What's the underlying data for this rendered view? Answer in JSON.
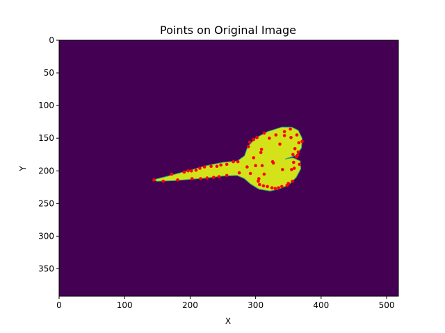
{
  "chart_data": {
    "type": "scatter",
    "title": "Points on Original Image",
    "xlabel": "X",
    "ylabel": "Y",
    "xlim": [
      0,
      518
    ],
    "ylim": [
      392,
      0
    ],
    "y_inverted": true,
    "grid": false,
    "x_ticks": [
      "0",
      "100",
      "200",
      "300",
      "400",
      "500"
    ],
    "y_ticks": [
      "0",
      "50",
      "100",
      "150",
      "200",
      "250",
      "300",
      "350"
    ],
    "colors": {
      "background": "#440154",
      "shape_fill": "#d4e21a",
      "shape_edge": "#22a884",
      "points": "#ff0000"
    },
    "image_shape": {
      "description_kind": "fish-like yellow blob on viridis background",
      "outline": [
        [
          143,
          214
        ],
        [
          170,
          207
        ],
        [
          200,
          199
        ],
        [
          225,
          192
        ],
        [
          250,
          187
        ],
        [
          272,
          185
        ],
        [
          283,
          177
        ],
        [
          288,
          163
        ],
        [
          300,
          150
        ],
        [
          318,
          140
        ],
        [
          340,
          133
        ],
        [
          355,
          133
        ],
        [
          365,
          138
        ],
        [
          371,
          150
        ],
        [
          370,
          165
        ],
        [
          362,
          176
        ],
        [
          345,
          182
        ],
        [
          357,
          180
        ],
        [
          368,
          185
        ],
        [
          369,
          197
        ],
        [
          362,
          210
        ],
        [
          350,
          222
        ],
        [
          335,
          228
        ],
        [
          322,
          231
        ],
        [
          305,
          228
        ],
        [
          292,
          220
        ],
        [
          283,
          212
        ],
        [
          272,
          207
        ],
        [
          250,
          208
        ],
        [
          225,
          211
        ],
        [
          200,
          213
        ],
        [
          175,
          215
        ],
        [
          150,
          216
        ]
      ]
    },
    "series": [
      {
        "values": [
          [
            145,
            214
          ],
          [
            159,
            216
          ],
          [
            172,
            205
          ],
          [
            181,
            214
          ],
          [
            191,
            202
          ],
          [
            197,
            200
          ],
          [
            202,
            200
          ],
          [
            203,
            212
          ],
          [
            209,
            199
          ],
          [
            215,
            196
          ],
          [
            216,
            212
          ],
          [
            222,
            194
          ],
          [
            226,
            211
          ],
          [
            232,
            193
          ],
          [
            236,
            210
          ],
          [
            241,
            193
          ],
          [
            244,
            209
          ],
          [
            247,
            191
          ],
          [
            256,
            190
          ],
          [
            256,
            207
          ],
          [
            266,
            186
          ],
          [
            273,
            186
          ],
          [
            275,
            203
          ],
          [
            287,
            194
          ],
          [
            289,
            163
          ],
          [
            291,
            156
          ],
          [
            292,
            204
          ],
          [
            297,
            152
          ],
          [
            297,
            180
          ],
          [
            300,
            192
          ],
          [
            302,
            149
          ],
          [
            304,
            216
          ],
          [
            305,
            212
          ],
          [
            306,
            221
          ],
          [
            308,
            172
          ],
          [
            309,
            167
          ],
          [
            310,
            192
          ],
          [
            312,
            223
          ],
          [
            313,
            142
          ],
          [
            313,
            205
          ],
          [
            318,
            224
          ],
          [
            325,
            226
          ],
          [
            326,
            186
          ],
          [
            330,
            227
          ],
          [
            331,
            145
          ],
          [
            335,
            226
          ],
          [
            337,
            159
          ],
          [
            340,
            224
          ],
          [
            341,
            198
          ],
          [
            344,
            146
          ],
          [
            344,
            140
          ],
          [
            348,
            222
          ],
          [
            350,
            219
          ],
          [
            353,
            136
          ],
          [
            354,
            149
          ],
          [
            355,
            198
          ],
          [
            356,
            216
          ],
          [
            357,
            175
          ],
          [
            358,
            187
          ],
          [
            359,
            196
          ],
          [
            360,
            166
          ],
          [
            362,
            179
          ],
          [
            363,
            145
          ],
          [
            364,
            176
          ],
          [
            365,
            171
          ],
          [
            366,
            157
          ],
          [
            367,
            190
          ],
          [
            371,
            155
          ],
          [
            321,
            150
          ],
          [
            327,
            188
          ]
        ]
      }
    ]
  }
}
